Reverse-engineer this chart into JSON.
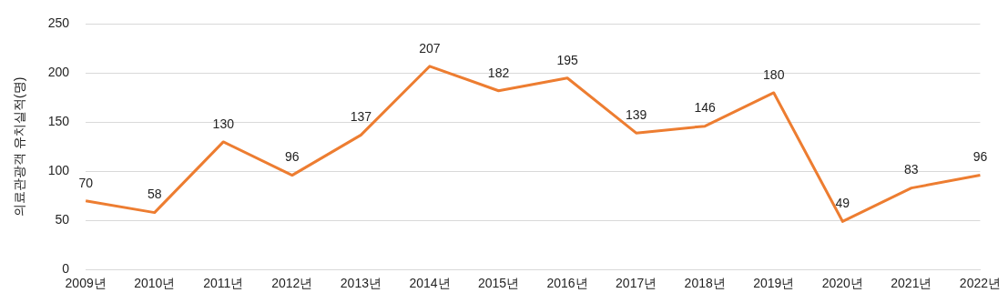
{
  "chart_data": {
    "type": "line",
    "ylabel": "의료관광객 유치실적(명)",
    "categories": [
      "2009년",
      "2010년",
      "2011년",
      "2012년",
      "2013년",
      "2014년",
      "2015년",
      "2016년",
      "2017년",
      "2018년",
      "2019년",
      "2020년",
      "2021년",
      "2022년"
    ],
    "series": [
      {
        "color": "#ed7d31",
        "values": [
          70,
          58,
          130,
          96,
          137,
          207,
          182,
          195,
          139,
          146,
          180,
          49,
          83,
          96
        ]
      }
    ],
    "ylim": [
      0,
      250
    ],
    "yticks": [
      0,
      50,
      100,
      150,
      200,
      250
    ],
    "grid": "y",
    "legend": false,
    "marker": "none",
    "line_style": "solid",
    "data_labels": true
  }
}
